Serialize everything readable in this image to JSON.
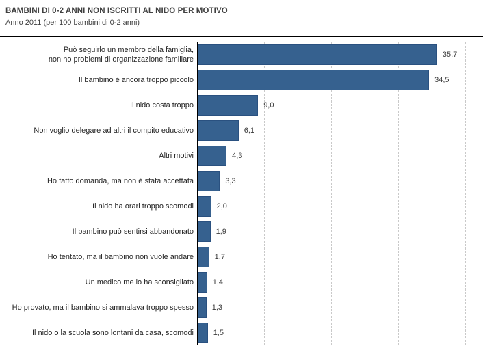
{
  "header": {
    "title": "BAMBINI DI 0-2 ANNI NON ISCRITTI AL NIDO PER MOTIVO",
    "subtitle": "Anno 2011 (per 100 bambini di 0-2 anni)"
  },
  "colors": {
    "bar_fill": "#36618F",
    "bar_border": "#2A5180",
    "gridline": "#C9C9C9",
    "axis": "#000000",
    "title_text": "#404040",
    "label_text": "#262626"
  },
  "chart_data": {
    "type": "bar",
    "orientation": "horizontal",
    "title": "BAMBINI DI 0-2 ANNI NON ISCRITTI AL NIDO PER MOTIVO",
    "subtitle": "Anno 2011 (per 100 bambini di 0-2 anni)",
    "unit": "per 100 bambini di 0-2 anni",
    "grid": true,
    "legend": false,
    "xlim": [
      0,
      40
    ],
    "grid_x": [
      5,
      10,
      15,
      20,
      25,
      30,
      35,
      40
    ],
    "categories": [
      "Può seguirlo un membro della famiglia,\nnon ho problemi di organizzazione familiare",
      "Il bambino è ancora troppo piccolo",
      "Il nido costa troppo",
      "Non voglio delegare ad altri il compito educativo",
      "Altri motivi",
      "Ho fatto domanda, ma non è stata accettata",
      "Il nido ha orari troppo scomodi",
      "Il bambino può sentirsi abbandonato",
      "Ho tentato, ma il bambino non vuole andare",
      "Un medico me lo ha sconsigliato",
      "Ho provato, ma il bambino si ammalava troppo spesso",
      "Il nido o la scuola sono lontani da casa, scomodi"
    ],
    "values": [
      35.7,
      34.5,
      9.0,
      6.1,
      4.3,
      3.3,
      2.0,
      1.9,
      1.7,
      1.4,
      1.3,
      1.5
    ],
    "value_labels": [
      "35,7",
      "34,5",
      "9,0",
      "6,1",
      "4,3",
      "3,3",
      "2,0",
      "1,9",
      "1,7",
      "1,4",
      "1,3",
      "1,5"
    ]
  }
}
